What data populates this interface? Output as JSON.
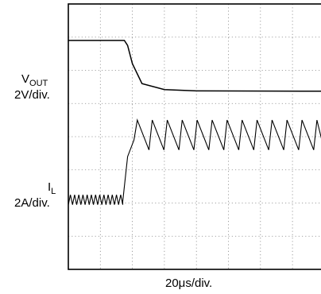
{
  "chart_data": {
    "type": "line",
    "x_division_label": "20μs/div.",
    "grid": true,
    "grid_divisions": {
      "x": 10,
      "y": 8
    },
    "series": [
      {
        "name": "VOUT",
        "scale_label": "2V/div.",
        "x": [
          0,
          1.75,
          1.85,
          2.0,
          2.3,
          3.0,
          4.0,
          10.0
        ],
        "y": [
          6.9,
          6.9,
          6.75,
          6.2,
          5.6,
          5.42,
          5.38,
          5.37
        ]
      },
      {
        "name": "IL",
        "scale_label": "2A/div.",
        "segments": [
          {
            "shape": "triangle",
            "x_start": 0.0,
            "x_end": 1.7,
            "cycles": 13,
            "low": 1.95,
            "high": 2.25
          },
          {
            "shape": "ramp",
            "x": [
              1.7,
              1.85,
              2.05
            ],
            "y": [
              2.05,
              3.4,
              3.9
            ]
          },
          {
            "shape": "sawtooth",
            "x_start": 2.05,
            "x_end": 10.0,
            "cycles": 17,
            "low": 3.6,
            "high": 4.5
          }
        ]
      }
    ]
  },
  "labels": {
    "vout_main": "V",
    "vout_sub": "OUT",
    "vout_scale": "2V/div.",
    "il_main": "I",
    "il_sub": "L",
    "il_scale": "2A/div.",
    "time_scale": "20μs/div."
  }
}
